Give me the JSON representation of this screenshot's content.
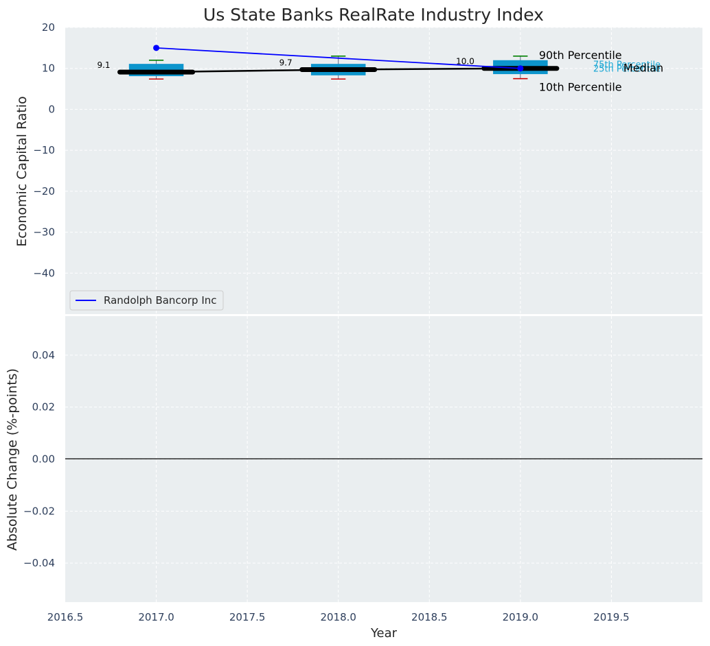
{
  "chart_data": [
    {
      "type": "box",
      "title": "Us State Banks RealRate Industry Index",
      "ylabel": "Economic Capital Ratio",
      "ylim": [
        -50,
        20
      ],
      "yticks": [
        20,
        10,
        0,
        -10,
        -20,
        -30,
        -40
      ],
      "xlim": [
        2016.5,
        2020.0
      ],
      "grid": true,
      "categories": [
        2017,
        2018,
        2019
      ],
      "percentiles": {
        "p10": [
          7.4,
          7.4,
          7.5
        ],
        "p25": [
          8.1,
          8.3,
          8.6
        ],
        "median": [
          9.1,
          9.7,
          10.0
        ],
        "p75": [
          11.1,
          11.1,
          12.0
        ],
        "p90": [
          12.0,
          13.0,
          13.0
        ]
      },
      "median_labels": [
        "9.1",
        "9.7",
        "10.0"
      ],
      "series": [
        {
          "name": "Randolph Bancorp Inc",
          "x": [
            2017,
            2019
          ],
          "y": [
            15.0,
            10.0
          ],
          "color": "#0000ff"
        }
      ],
      "annotations": {
        "p90": "90th Percentile",
        "p75": "75th Percentile",
        "median": "Median",
        "p25": "25th Percentile",
        "p10": "10th Percentile"
      },
      "legend_position": "bottom-left"
    },
    {
      "type": "line",
      "ylabel": "Absolute Change (%-points)",
      "xlabel": "Year",
      "ylim": [
        -0.055,
        0.055
      ],
      "yticks": [
        "0.04",
        "0.02",
        "0.00",
        "−0.02",
        "−0.04"
      ],
      "xticks": [
        "2016.5",
        "2017.0",
        "2017.5",
        "2018.0",
        "2018.5",
        "2019.0",
        "2019.5"
      ],
      "xlim": [
        2016.5,
        2020.0
      ],
      "zero_line": 0,
      "grid": true
    }
  ],
  "colors": {
    "panel_bg": "#eaeef0",
    "box_fill": "#0d95cc",
    "whisker_high": "#008000",
    "whisker_low": "#cc0000",
    "median_line": "#000000",
    "company_line": "#0000ff"
  }
}
